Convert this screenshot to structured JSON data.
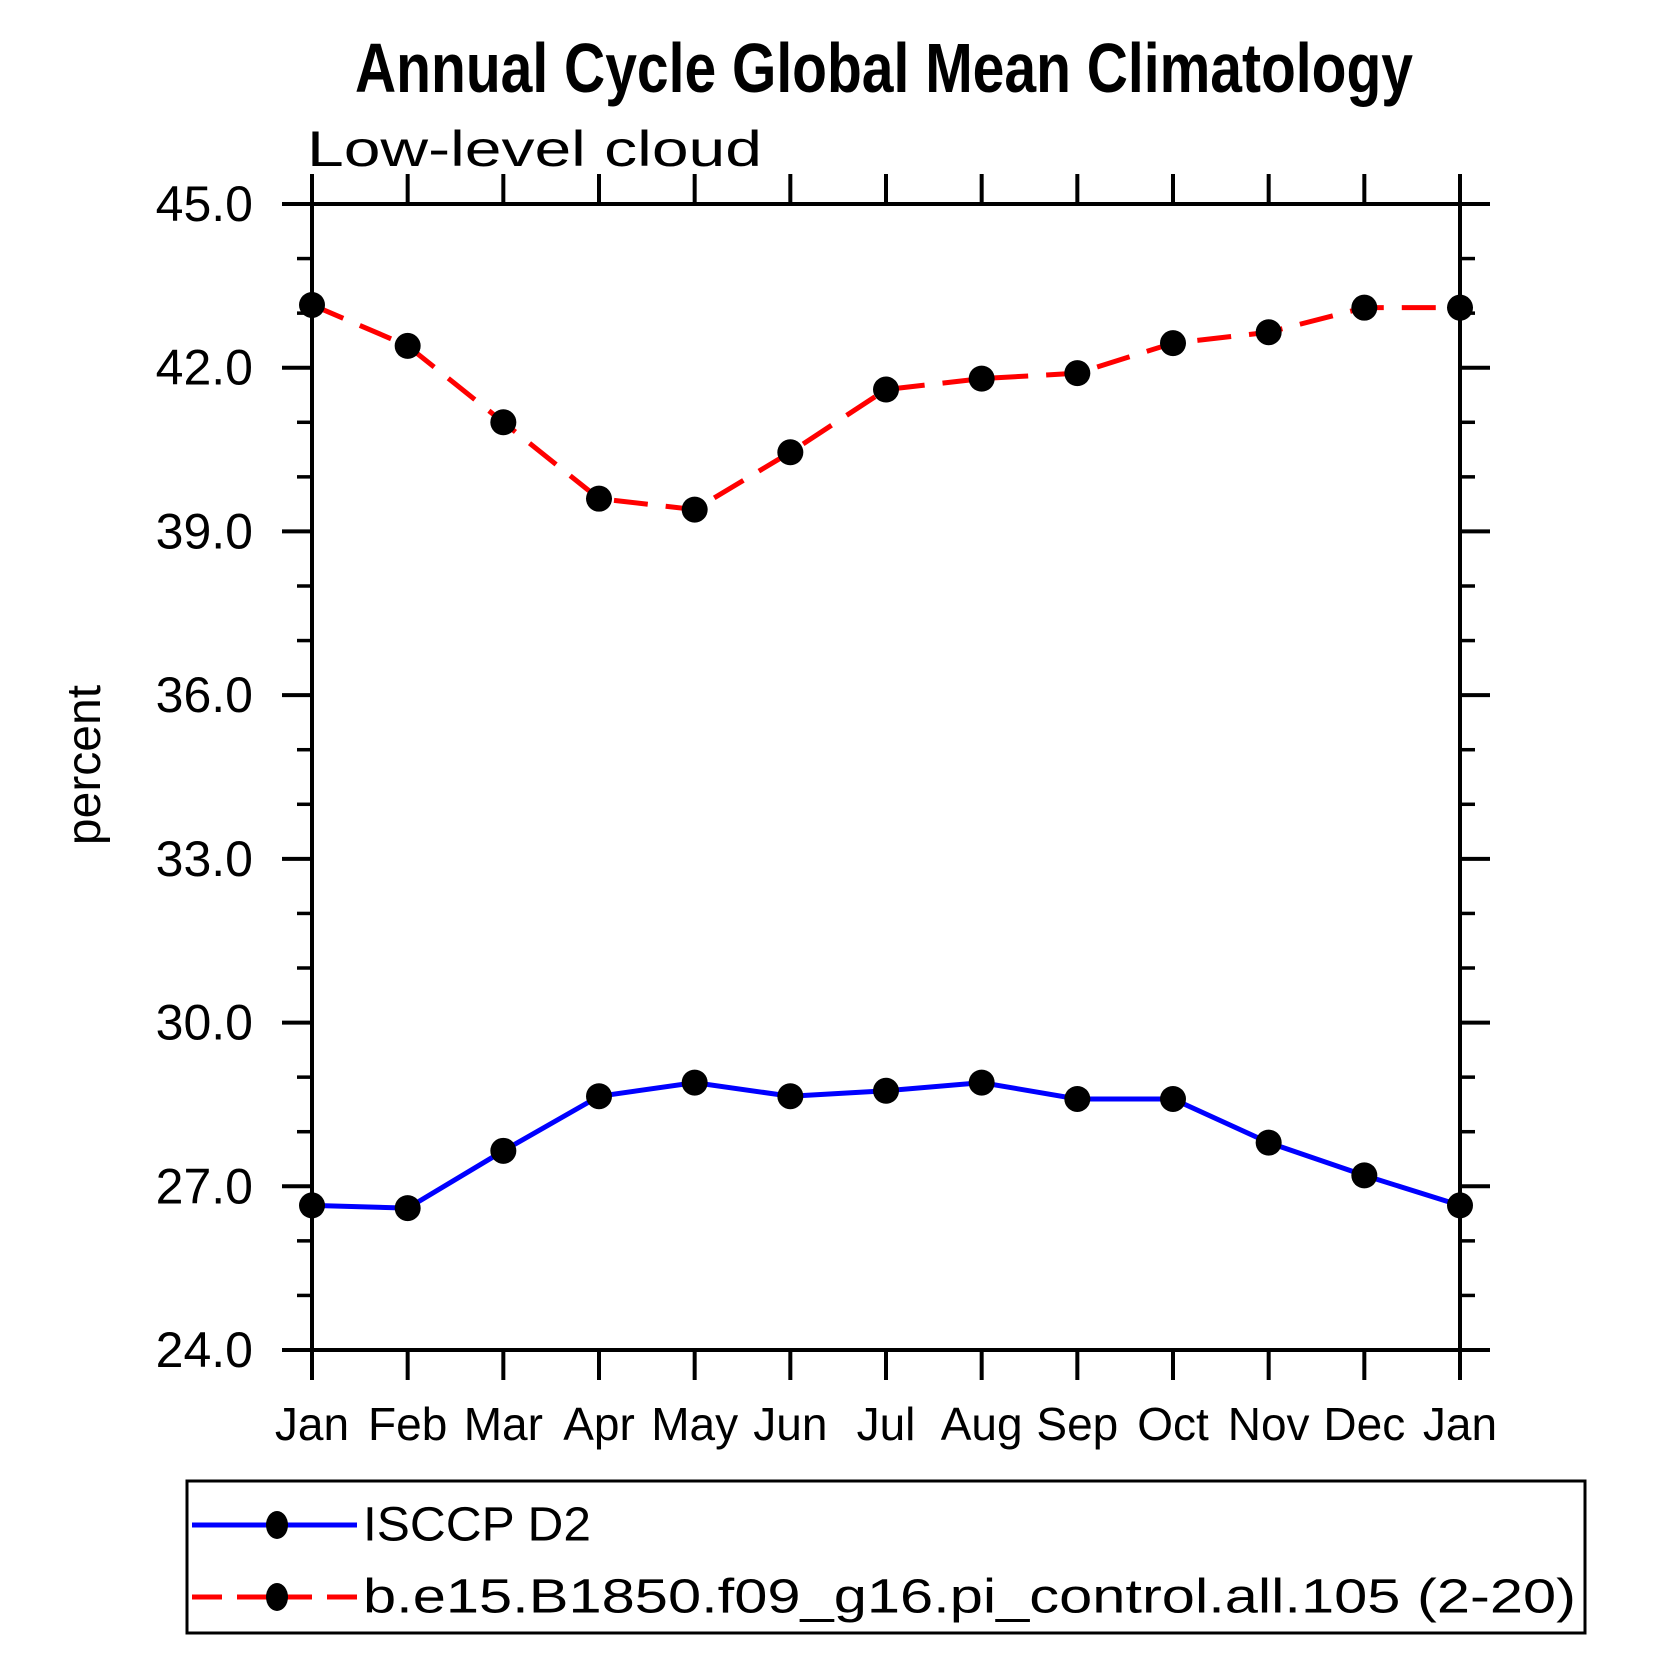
{
  "title": "Annual Cycle Global Mean Climatology",
  "subtitle": "Low-level cloud",
  "ylabel": "percent",
  "chart_data": {
    "type": "line",
    "x_categories": [
      "Jan",
      "Feb",
      "Mar",
      "Apr",
      "May",
      "Jun",
      "Jul",
      "Aug",
      "Sep",
      "Oct",
      "Nov",
      "Dec",
      "Jan"
    ],
    "xlabel": "",
    "ylabel": "percent",
    "ylim": [
      24.0,
      45.0
    ],
    "ytick_major": [
      24.0,
      27.0,
      30.0,
      33.0,
      36.0,
      39.0,
      42.0,
      45.0
    ],
    "ytick_minor_step": 1.0,
    "grid": false,
    "legend_position": "bottom-left-box",
    "series": [
      {
        "name": "ISCCP D2",
        "color": "#0000ff",
        "style": "solid",
        "marker": "filled-circle",
        "marker_color": "#000000",
        "values": [
          26.65,
          26.6,
          27.65,
          28.65,
          28.9,
          28.65,
          28.75,
          28.9,
          28.6,
          28.6,
          27.8,
          27.2,
          26.65
        ]
      },
      {
        "name": "b.e15.B1850.f09_g16.pi_control.all.105 (2-20)",
        "color": "#ff0000",
        "style": "dashed",
        "marker": "filled-circle",
        "marker_color": "#000000",
        "values": [
          43.15,
          42.4,
          41.0,
          39.6,
          39.4,
          40.45,
          41.6,
          41.8,
          41.9,
          42.45,
          42.65,
          43.1,
          43.1
        ]
      }
    ]
  }
}
